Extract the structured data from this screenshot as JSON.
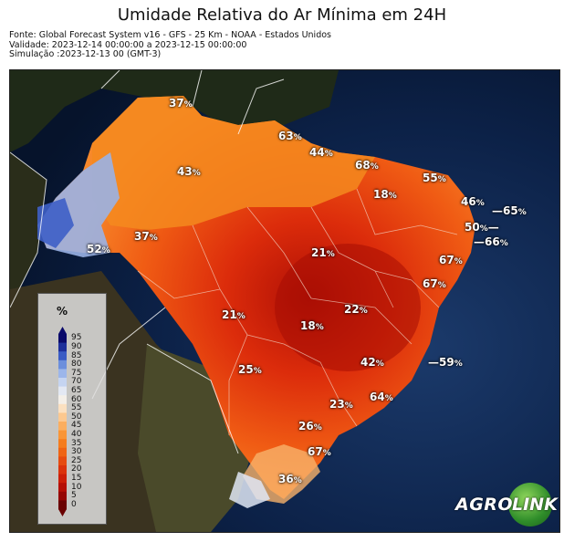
{
  "title": "Umidade Relativa do Ar Mínima em 24H",
  "meta": {
    "source": "Fonte: Global Forecast System v16 - GFS - 25 Km - NOAA - Estados Unidos",
    "validity": "Validade: 2023-12-14 00:00:00 a 2023-12-15 00:00:00",
    "simulation": "Simulação :2023-12-13 00 (GMT-3)"
  },
  "legend": {
    "title": "%",
    "ticks": [
      "95",
      "90",
      "85",
      "80",
      "75",
      "70",
      "65",
      "60",
      "55",
      "50",
      "45",
      "40",
      "35",
      "30",
      "25",
      "20",
      "15",
      "10",
      "5",
      "0"
    ],
    "colors": [
      "#0a0a6a",
      "#1d2f9a",
      "#3a5bc4",
      "#6c8fdc",
      "#9cb6ea",
      "#c5d4f1",
      "#e3e8f3",
      "#f4efe8",
      "#fbe0c0",
      "#fcc88f",
      "#fbae5f",
      "#f99536",
      "#f57c1d",
      "#ef6414",
      "#e64b10",
      "#db330c",
      "#cc1f08",
      "#b50f05",
      "#950603",
      "#6a0101"
    ]
  },
  "labels": [
    {
      "value": "37",
      "unit": "%"
    },
    {
      "value": "63",
      "unit": "%"
    },
    {
      "value": "44",
      "unit": "%"
    },
    {
      "value": "43",
      "unit": "%"
    },
    {
      "value": "68",
      "unit": "%"
    },
    {
      "value": "55",
      "unit": "%"
    },
    {
      "value": "18",
      "unit": "%"
    },
    {
      "value": "46",
      "unit": "%"
    },
    {
      "value": "65",
      "unit": "%"
    },
    {
      "value": "50",
      "unit": "%"
    },
    {
      "value": "66",
      "unit": "%"
    },
    {
      "value": "37",
      "unit": "%"
    },
    {
      "value": "52",
      "unit": "%"
    },
    {
      "value": "21",
      "unit": "%"
    },
    {
      "value": "67",
      "unit": "%"
    },
    {
      "value": "67",
      "unit": "%"
    },
    {
      "value": "22",
      "unit": "%"
    },
    {
      "value": "21",
      "unit": "%"
    },
    {
      "value": "18",
      "unit": "%"
    },
    {
      "value": "42",
      "unit": "%"
    },
    {
      "value": "59",
      "unit": "%"
    },
    {
      "value": "25",
      "unit": "%"
    },
    {
      "value": "64",
      "unit": "%"
    },
    {
      "value": "23",
      "unit": "%"
    },
    {
      "value": "26",
      "unit": "%"
    },
    {
      "value": "67",
      "unit": "%"
    },
    {
      "value": "36",
      "unit": "%"
    }
  ],
  "logo": {
    "left": "AGRO",
    "right": "LINK"
  }
}
